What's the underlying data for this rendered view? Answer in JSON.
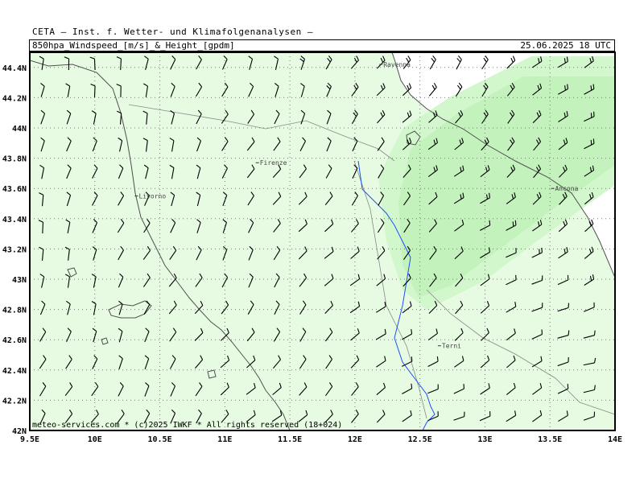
{
  "header": {
    "title": "CETA — Inst. f. Wetter- und Klimafolgenanalysen —",
    "product": "850hpa_Windspeed_[m/s]_&_Height_[gpdm]",
    "valid_time": "25.06.2025 18 UTC"
  },
  "footer": {
    "credit": "meteo-services.com * (c)2025 IWKF * All rights reserved (18+024)"
  },
  "colors": {
    "land_fill": "#e6fbe2",
    "wind_band_light": "#d2f7cc",
    "wind_band_core": "#c3f2bc",
    "river": "#1f4fff",
    "coast": "#505050",
    "grid": "#7a7a7a"
  },
  "map": {
    "projection": "lat-lon",
    "lon_range": [
      9.5,
      14.0
    ],
    "lat_range": [
      42.0,
      44.5
    ],
    "x_ticks": [
      "9.5E",
      "10E",
      "10.5E",
      "11E",
      "11.5E",
      "12E",
      "12.5E",
      "13E",
      "13.5E",
      "14E"
    ],
    "y_ticks": [
      "42N",
      "42.2N",
      "42.4N",
      "42.6N",
      "42.8N",
      "43N",
      "43.2N",
      "43.4N",
      "43.6N",
      "43.8N",
      "44N",
      "44.2N",
      "44.4N"
    ],
    "cities": [
      {
        "name": "Ravenna",
        "lon": 12.2,
        "lat": 44.42
      },
      {
        "name": "Firenze",
        "lon": 11.25,
        "lat": 43.77
      },
      {
        "name": "Livorno",
        "lon": 10.32,
        "lat": 43.55
      },
      {
        "name": "Ancona",
        "lon": 13.52,
        "lat": 43.6
      },
      {
        "name": "Terni",
        "lon": 12.65,
        "lat": 42.56
      }
    ],
    "wind_barbs": {
      "lon_start": 9.6,
      "lon_step": 0.2,
      "lat_start": 42.08,
      "lat_step": 0.18,
      "cols": 22,
      "rows": 14
    }
  }
}
